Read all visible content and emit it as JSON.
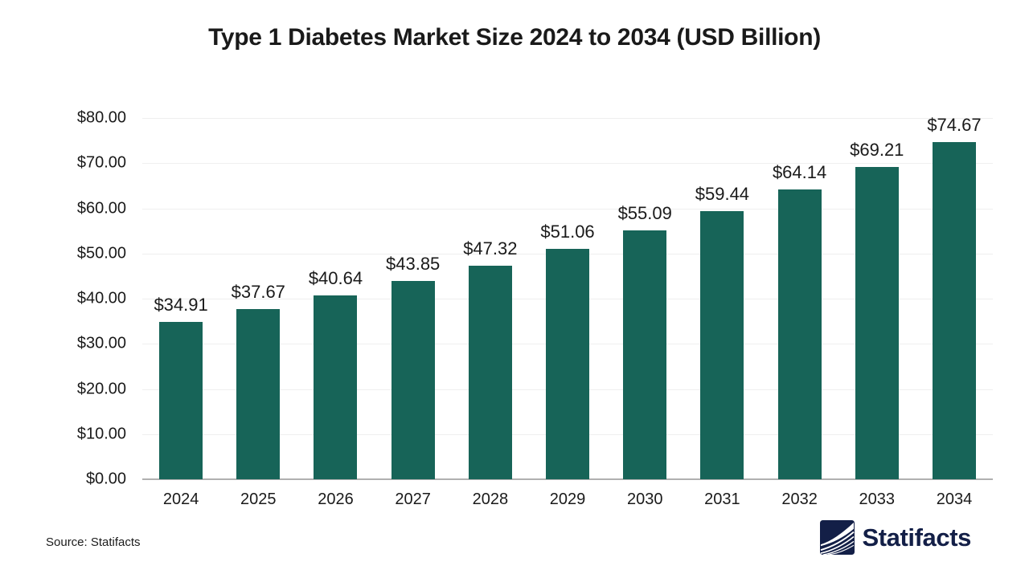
{
  "title": "Type 1 Diabetes Market Size 2024 to 2034 (USD Billion)",
  "source_note": "Source: Statifacts",
  "brand": {
    "name": "Statifacts",
    "icon": "waves-chart-icon"
  },
  "colors": {
    "bar": "#176458",
    "gridline": "#efefef",
    "axis_line": "#b0b0b0",
    "title_text": "#1a1a1a",
    "tick_text": "#1a1a1a",
    "brand_navy": "#131f47",
    "background": "#ffffff"
  },
  "chart_data": {
    "type": "bar",
    "title": "Type 1 Diabetes Market Size 2024 to 2034 (USD Billion)",
    "categories": [
      "2024",
      "2025",
      "2026",
      "2027",
      "2028",
      "2029",
      "2030",
      "2031",
      "2032",
      "2033",
      "2034"
    ],
    "values": [
      34.91,
      37.67,
      40.64,
      43.85,
      47.32,
      51.06,
      55.09,
      59.44,
      64.14,
      69.21,
      74.67
    ],
    "bar_labels": [
      "$34.91",
      "$37.67",
      "$40.64",
      "$43.85",
      "$47.32",
      "$51.06",
      "$55.09",
      "$59.44",
      "$64.14",
      "$69.21",
      "$74.67"
    ],
    "xlabel": "",
    "ylabel": "",
    "ylim": [
      0,
      80
    ],
    "ytick_values": [
      80,
      70,
      60,
      50,
      40,
      30,
      20,
      10,
      0
    ],
    "ytick_labels": [
      "$80.00",
      "$70.00",
      "$60.00",
      "$50.00",
      "$40.00",
      "$30.00",
      "$20.00",
      "$10.00",
      "$0.00"
    ],
    "grid": true,
    "legend": false,
    "bar_color": "#176458"
  }
}
